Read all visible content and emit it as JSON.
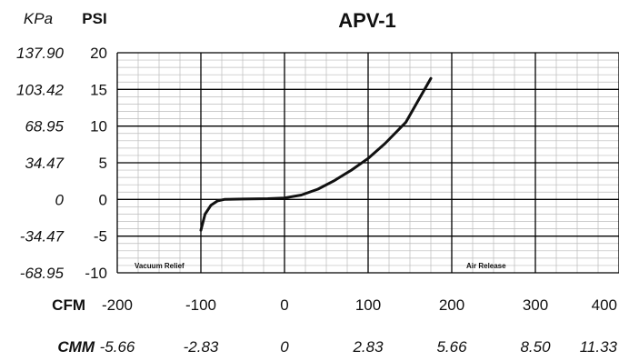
{
  "chart_data": {
    "type": "line",
    "title": "APV-1",
    "y_units": {
      "primary": "PSI",
      "secondary": "KPa"
    },
    "x_units": {
      "primary": "CFM",
      "secondary": "CMM"
    },
    "ylim": [
      -10,
      20
    ],
    "xlim": [
      -200,
      400
    ],
    "y_ticks": [
      20,
      15,
      10,
      5,
      0,
      -5,
      -10
    ],
    "y_ticks_kpa": [
      "137.90",
      "103.42",
      "68.95",
      "34.47",
      "0",
      "-34.47",
      "-68.95"
    ],
    "x_ticks": [
      -200,
      -100,
      0,
      100,
      200,
      300,
      400
    ],
    "x_ticks_cmm": [
      "-5.66",
      "-2.83",
      "0",
      "2.83",
      "5.66",
      "8.50",
      "11.33"
    ],
    "grid": true,
    "annotations": [
      "Vacuum Relief",
      "Air Release"
    ],
    "series": [
      {
        "x": [
          -100,
          -95,
          -88,
          -80,
          -72,
          -50,
          -20,
          0,
          20,
          40,
          60,
          80,
          100,
          120,
          145,
          160,
          175
        ],
        "y": [
          -4.2,
          -2.0,
          -0.8,
          -0.2,
          0,
          0.05,
          0.1,
          0.2,
          0.6,
          1.4,
          2.6,
          4.0,
          5.6,
          7.6,
          10.5,
          13.5,
          16.5
        ]
      }
    ]
  },
  "colors": {
    "line": "#111111",
    "grid_major": "#000000",
    "grid_minor": "#bbbbbb"
  }
}
